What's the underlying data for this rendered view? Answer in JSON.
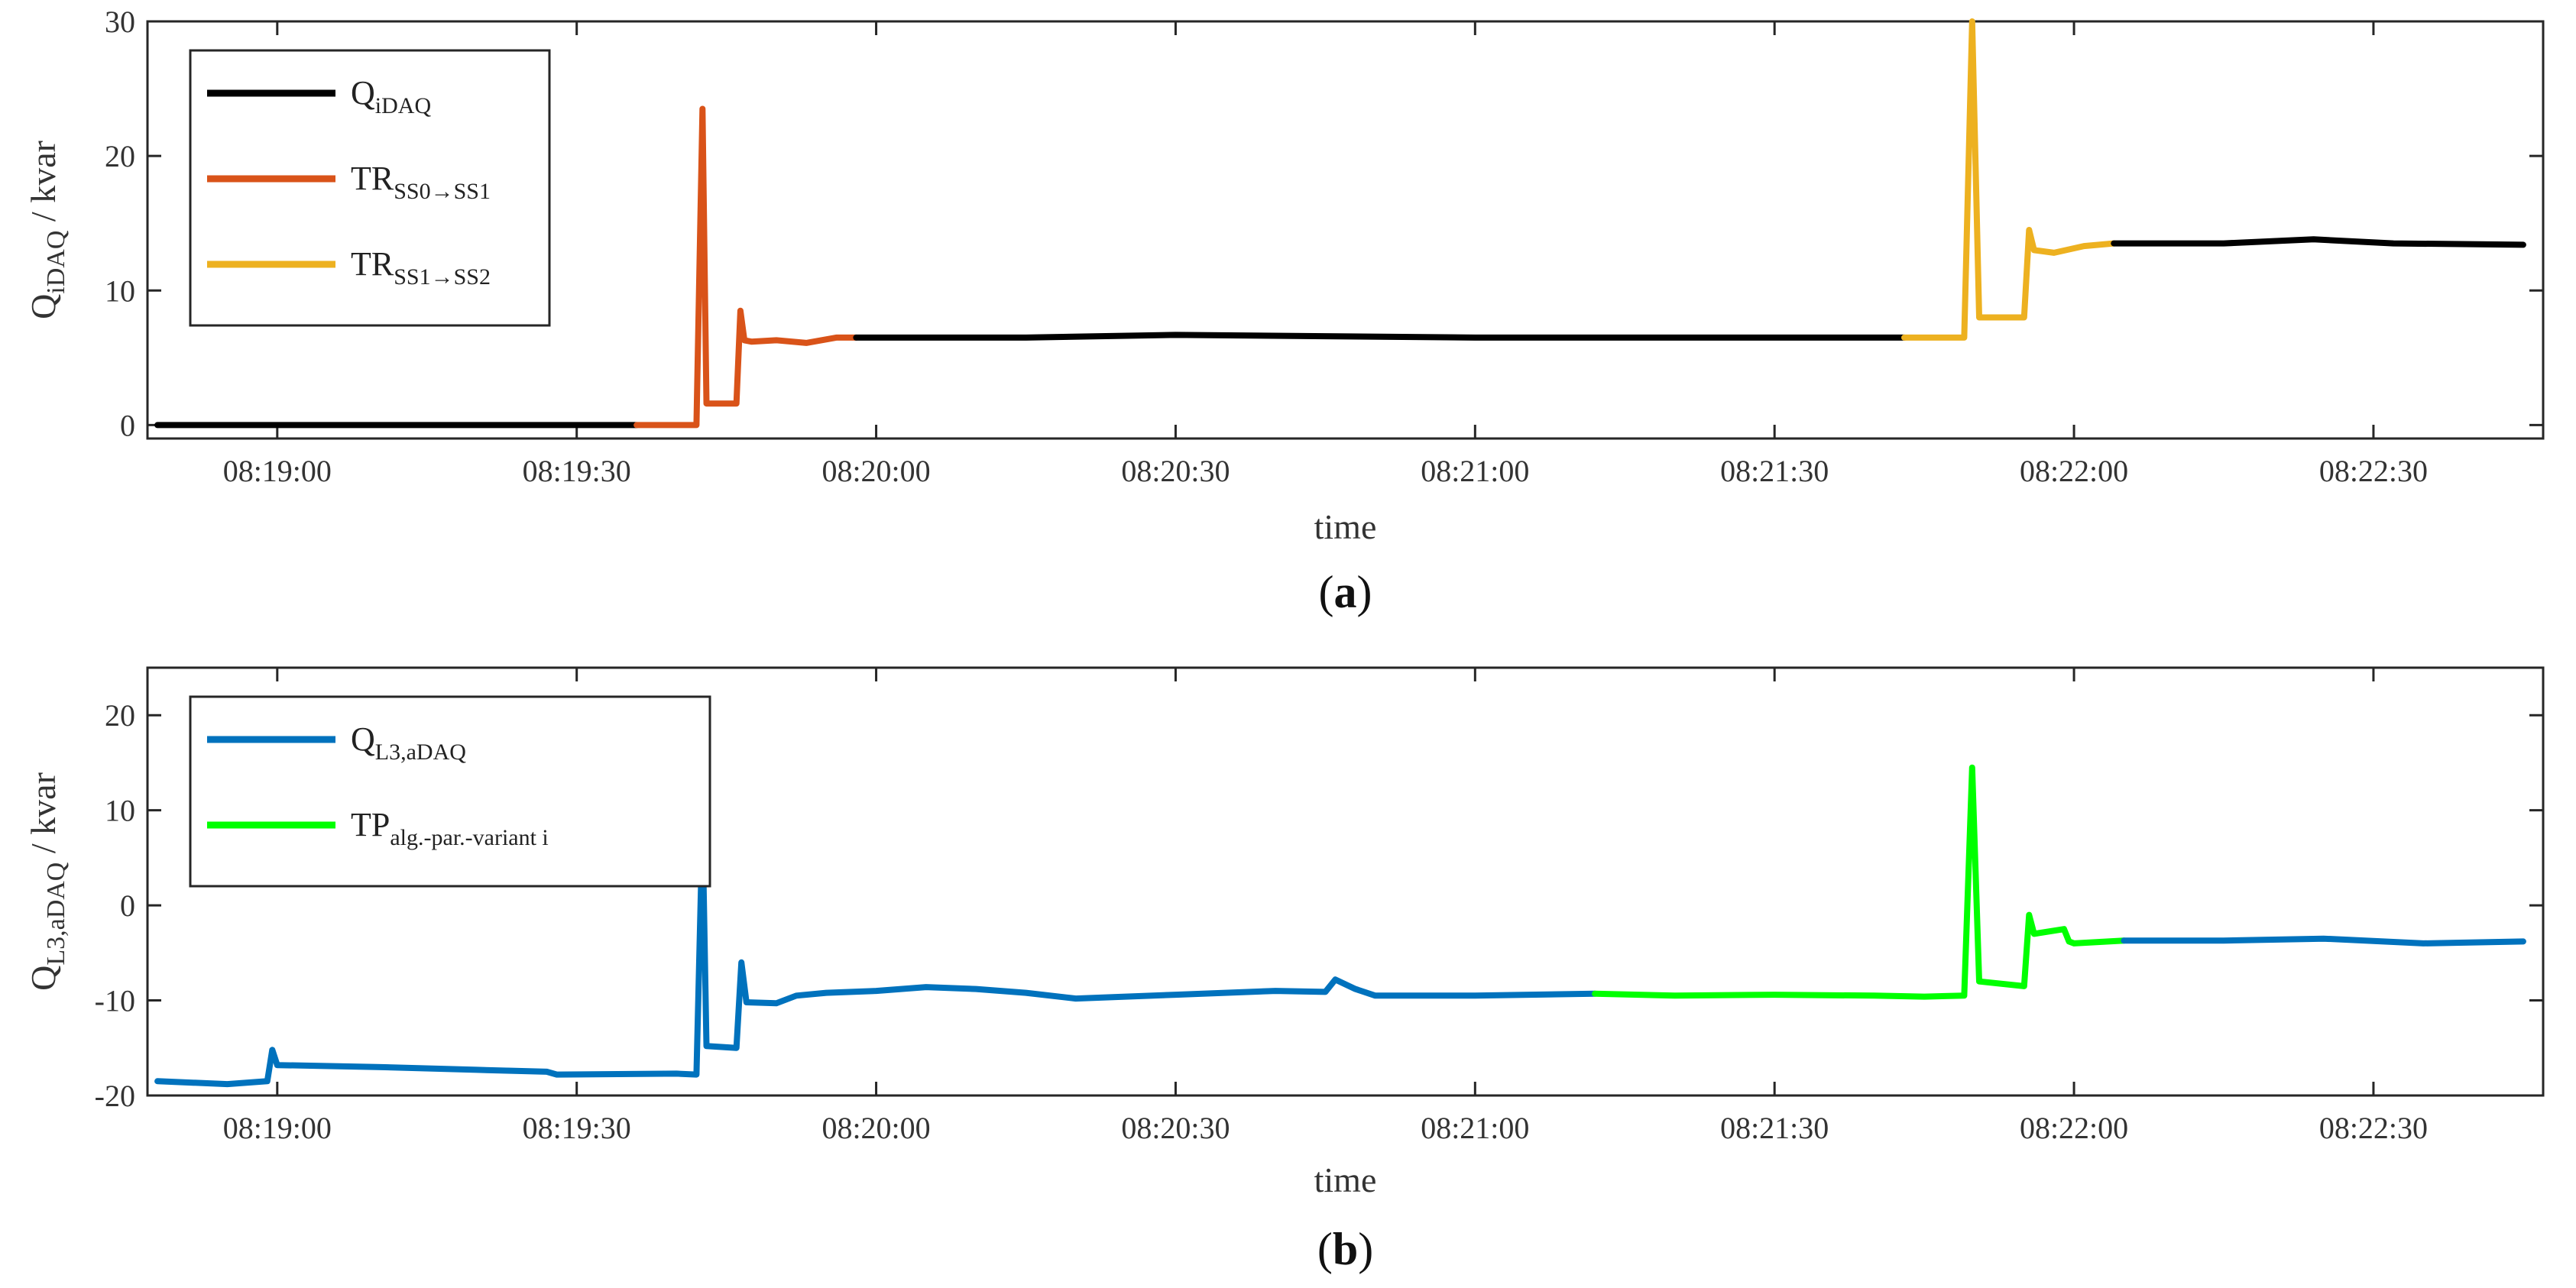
{
  "chart_data": [
    {
      "type": "line",
      "panel_label": "a",
      "xlabel": "time",
      "ylabel": {
        "main": "Q",
        "sub": "iDAQ",
        "unit": " / kvar"
      },
      "xlim": [
        "08:18:47",
        "08:22:47"
      ],
      "ylim": [
        -1,
        30
      ],
      "xticks": [
        "08:19:00",
        "08:19:30",
        "08:20:00",
        "08:20:30",
        "08:21:00",
        "08:21:30",
        "08:22:00",
        "08:22:30"
      ],
      "yticks": [
        0,
        10,
        20,
        30
      ],
      "legend_position": "top-left",
      "series": [
        {
          "name": {
            "main": "Q",
            "sub": "iDAQ"
          },
          "color": "#000000",
          "x": [
            "08:18:48",
            "08:19:36"
          ],
          "y": [
            0,
            0
          ]
        },
        {
          "name": {
            "main": "TR",
            "sub": "SS0→SS1"
          },
          "color": "#D95319",
          "x": [
            "08:19:36",
            "08:19:42",
            "08:19:42.6",
            "08:19:43",
            "08:19:43.4",
            "08:19:44",
            "08:19:46",
            "08:19:46.4",
            "08:19:46.8",
            "08:19:47.5",
            "08:19:50",
            "08:19:53",
            "08:19:56",
            "08:19:58"
          ],
          "y": [
            0,
            0,
            23.5,
            1.6,
            1.6,
            1.6,
            1.6,
            8.5,
            6.3,
            6.2,
            6.3,
            6.1,
            6.5,
            6.5
          ]
        },
        {
          "name": "",
          "color": "#000000",
          "x": [
            "08:19:58",
            "08:20:15",
            "08:20:30",
            "08:20:45",
            "08:21:00",
            "08:21:15",
            "08:21:30",
            "08:21:43"
          ],
          "y": [
            6.5,
            6.5,
            6.7,
            6.6,
            6.5,
            6.5,
            6.5,
            6.5
          ]
        },
        {
          "name": {
            "main": "TR",
            "sub": "SS1→SS2"
          },
          "color": "#EDB120",
          "x": [
            "08:21:43",
            "08:21:49",
            "08:21:49.8",
            "08:21:50.5",
            "08:21:51",
            "08:21:55",
            "08:21:55.5",
            "08:21:56",
            "08:21:58",
            "08:22:01",
            "08:22:04"
          ],
          "y": [
            6.5,
            6.5,
            30,
            8.0,
            8.0,
            8.0,
            14.5,
            13.0,
            12.8,
            13.3,
            13.5
          ]
        },
        {
          "name": "",
          "color": "#000000",
          "x": [
            "08:22:04",
            "08:22:15",
            "08:22:24",
            "08:22:32",
            "08:22:45"
          ],
          "y": [
            13.5,
            13.5,
            13.8,
            13.5,
            13.4
          ]
        }
      ]
    },
    {
      "type": "line",
      "panel_label": "b",
      "xlabel": "time",
      "ylabel": {
        "main": "Q",
        "sub": "L3,aDAQ",
        "unit": " / kvar"
      },
      "xlim": [
        "08:18:47",
        "08:22:47"
      ],
      "ylim": [
        -20,
        25
      ],
      "xticks": [
        "08:19:00",
        "08:19:30",
        "08:20:00",
        "08:20:30",
        "08:21:00",
        "08:21:30",
        "08:22:00",
        "08:22:30"
      ],
      "yticks": [
        -20,
        -10,
        0,
        10,
        20
      ],
      "legend_position": "top-left",
      "series": [
        {
          "name": {
            "main": "Q",
            "sub": "L3,aDAQ"
          },
          "color": "#0072BD",
          "x": [
            "08:18:48",
            "08:18:55",
            "08:18:59",
            "08:18:59.5",
            "08:19:00",
            "08:19:10",
            "08:19:20",
            "08:19:27",
            "08:19:28",
            "08:19:40",
            "08:19:42",
            "08:19:42.6",
            "08:19:43",
            "08:19:46",
            "08:19:46.5",
            "08:19:47",
            "08:19:50",
            "08:19:52",
            "08:19:55",
            "08:20:00",
            "08:20:05",
            "08:20:10",
            "08:20:15",
            "08:20:20",
            "08:20:30",
            "08:20:40",
            "08:20:45",
            "08:20:46",
            "08:20:48",
            "08:20:50",
            "08:21:00",
            "08:21:12"
          ],
          "y": [
            -18.5,
            -18.8,
            -18.5,
            -15.2,
            -16.8,
            -17.0,
            -17.3,
            -17.5,
            -17.8,
            -17.7,
            -17.8,
            8.5,
            -14.8,
            -15.0,
            -6.0,
            -10.2,
            -10.3,
            -9.5,
            -9.2,
            -9.0,
            -8.6,
            -8.8,
            -9.2,
            -9.8,
            -9.4,
            -9.0,
            -9.1,
            -7.8,
            -8.8,
            -9.5,
            -9.5,
            -9.3
          ]
        },
        {
          "name": {
            "main": "TP",
            "sub": "alg.-par.-variant i"
          },
          "color": "#00FF00",
          "x": [
            "08:21:12",
            "08:21:20",
            "08:21:30",
            "08:21:40",
            "08:21:45",
            "08:21:49",
            "08:21:49.8",
            "08:21:50.5",
            "08:21:55",
            "08:21:55.5",
            "08:21:56",
            "08:21:59",
            "08:21:59.5",
            "08:22:00",
            "08:22:05"
          ],
          "y": [
            -9.3,
            -9.5,
            -9.4,
            -9.5,
            -9.6,
            -9.5,
            14.5,
            -8.0,
            -8.5,
            -1.0,
            -3.0,
            -2.5,
            -3.8,
            -4.0,
            -3.7
          ]
        },
        {
          "name": "",
          "color": "#0072BD",
          "x": [
            "08:22:05",
            "08:22:15",
            "08:22:25",
            "08:22:35",
            "08:22:45"
          ],
          "y": [
            -3.7,
            -3.7,
            -3.5,
            -4.0,
            -3.8
          ]
        }
      ]
    }
  ]
}
